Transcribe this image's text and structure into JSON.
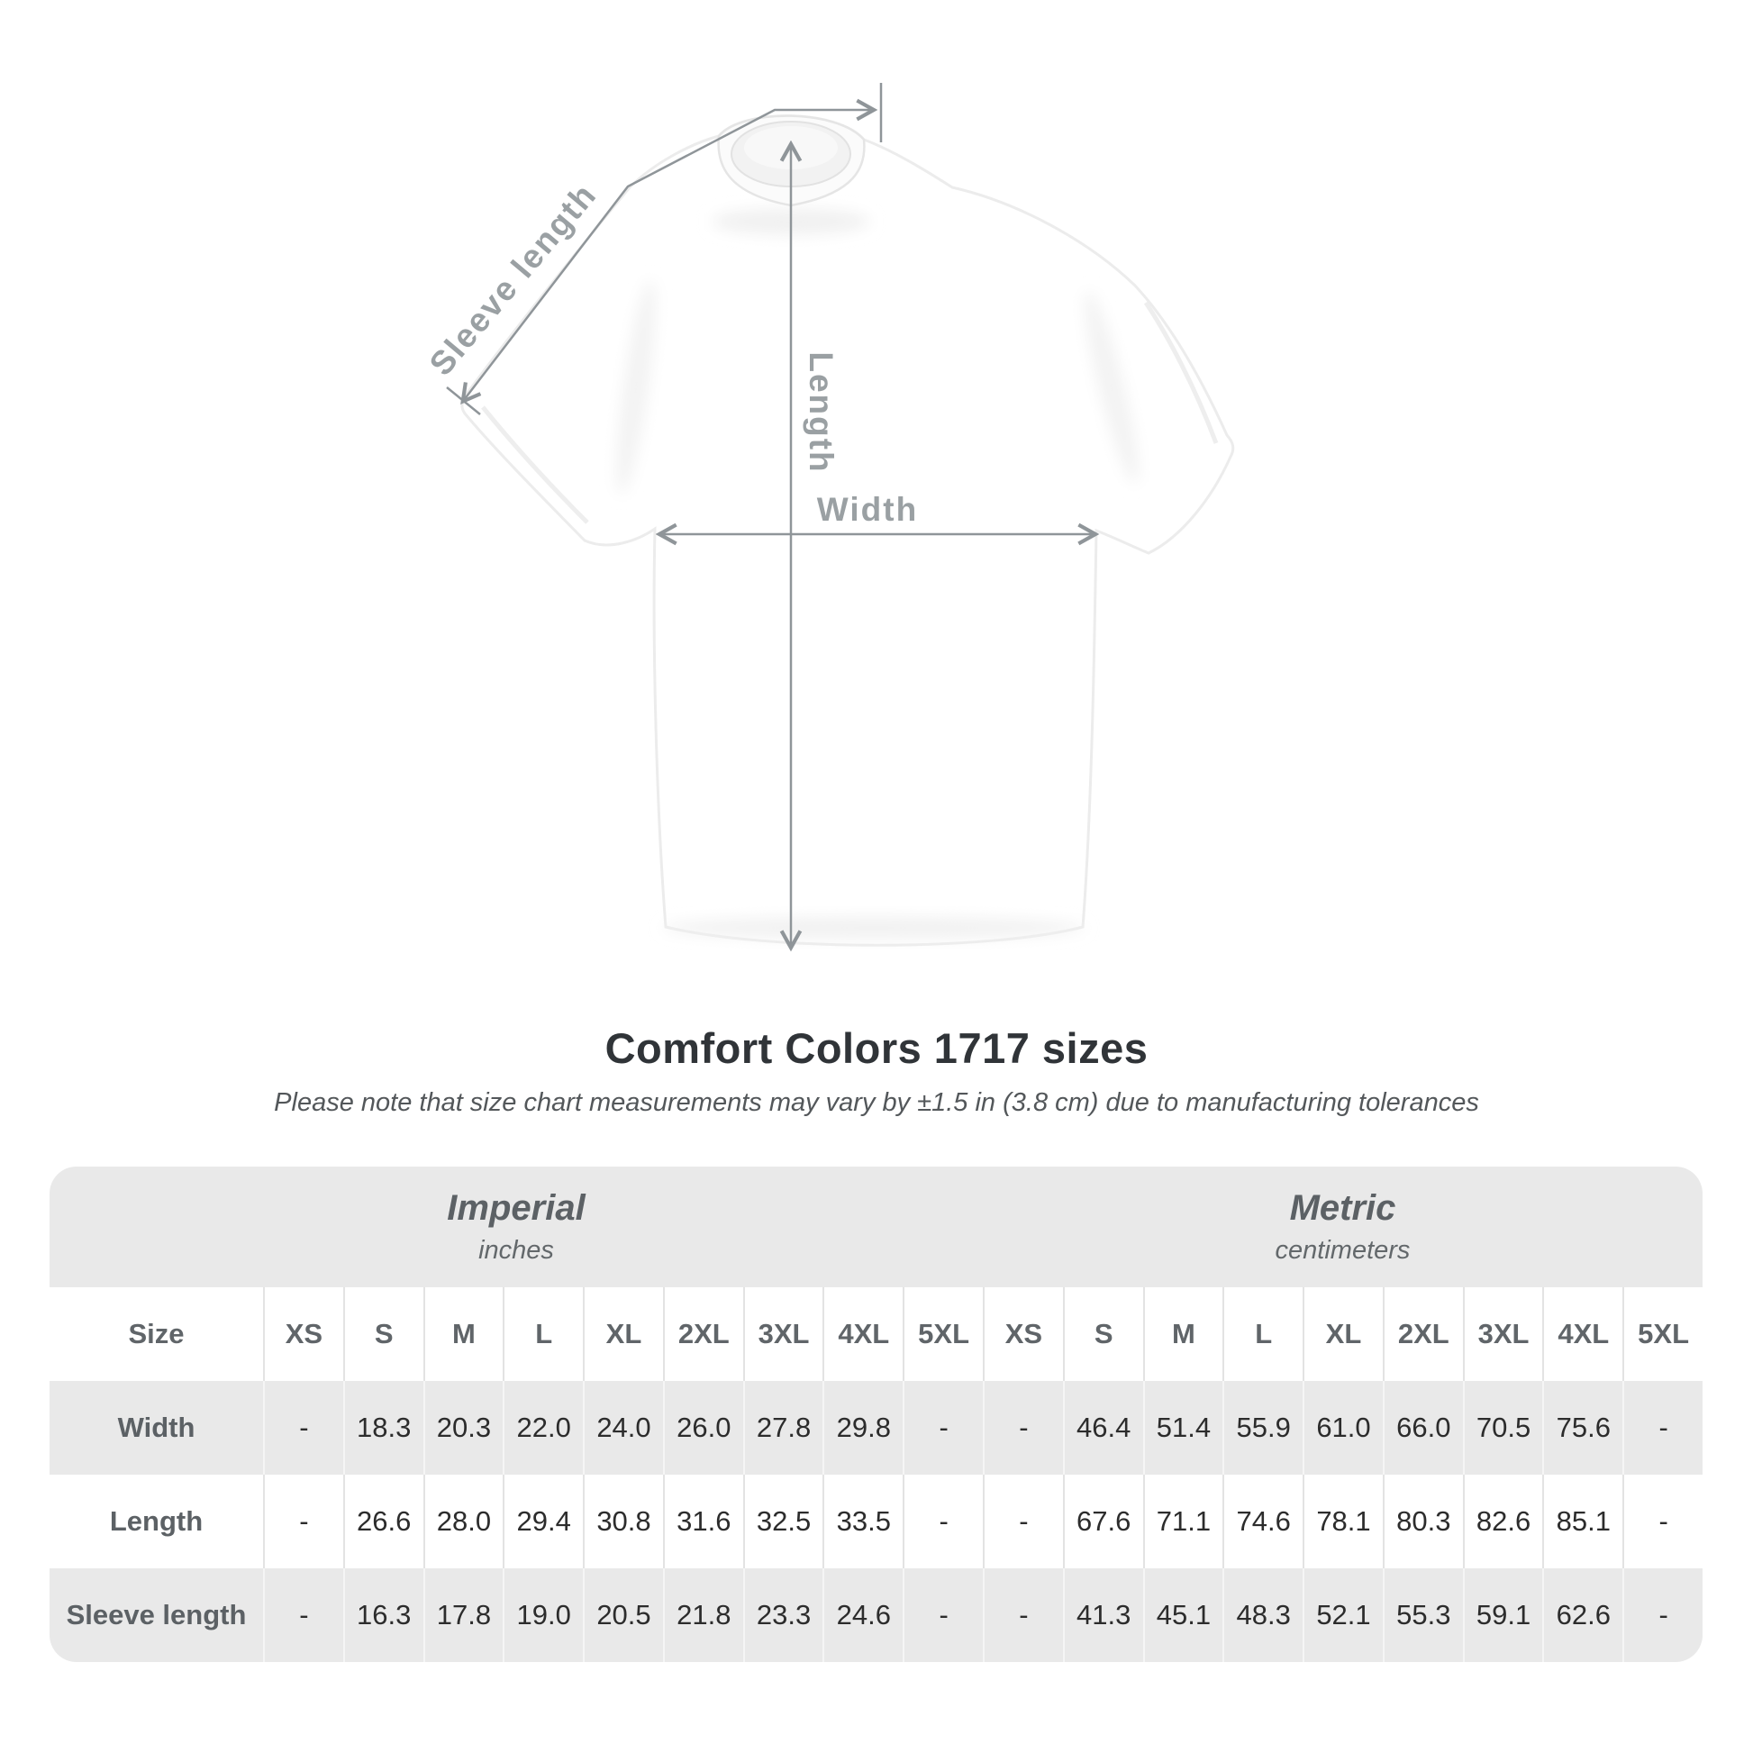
{
  "diagram": {
    "sleeve_label": "Sleeve length",
    "length_label": "Length",
    "width_label": "Width"
  },
  "heading": {
    "title": "Comfort Colors 1717 sizes",
    "note": "Please note that size chart measurements may vary by ±1.5 in (3.8 cm) due to manufacturing tolerances"
  },
  "table": {
    "size_col_header": "Size",
    "unit_groups": [
      {
        "name": "Imperial",
        "unit": "inches"
      },
      {
        "name": "Metric",
        "unit": "centimeters"
      }
    ],
    "sizes": [
      "XS",
      "S",
      "M",
      "L",
      "XL",
      "2XL",
      "3XL",
      "4XL",
      "5XL"
    ],
    "rows": [
      {
        "label": "Width",
        "imperial": [
          "-",
          "18.3",
          "20.3",
          "22.0",
          "24.0",
          "26.0",
          "27.8",
          "29.8",
          "-"
        ],
        "metric": [
          "-",
          "46.4",
          "51.4",
          "55.9",
          "61.0",
          "66.0",
          "70.5",
          "75.6",
          "-"
        ]
      },
      {
        "label": "Length",
        "imperial": [
          "-",
          "26.6",
          "28.0",
          "29.4",
          "30.8",
          "31.6",
          "32.5",
          "33.5",
          "-"
        ],
        "metric": [
          "-",
          "67.6",
          "71.1",
          "74.6",
          "78.1",
          "80.3",
          "82.6",
          "85.1",
          "-"
        ]
      },
      {
        "label": "Sleeve length",
        "imperial": [
          "-",
          "16.3",
          "17.8",
          "19.0",
          "20.5",
          "21.8",
          "23.3",
          "24.6",
          "-"
        ],
        "metric": [
          "-",
          "41.3",
          "45.1",
          "48.3",
          "52.1",
          "55.3",
          "59.1",
          "62.6",
          "-"
        ]
      }
    ]
  },
  "colors": {
    "annotation_line": "#8f9599",
    "annotation_text": "#9aa0a3",
    "table_band": "#e9e9e9",
    "title_text": "#303438",
    "value_text": "#2c2c2c"
  },
  "chart_data": {
    "type": "table",
    "title": "Comfort Colors 1717 sizes",
    "note": "Please note that size chart measurements may vary by ±1.5 in (3.8 cm) due to manufacturing tolerances",
    "unit_groups": [
      "Imperial (inches)",
      "Metric (centimeters)"
    ],
    "columns": [
      "Size",
      "XS",
      "S",
      "M",
      "L",
      "XL",
      "2XL",
      "3XL",
      "4XL",
      "5XL"
    ],
    "rows": [
      {
        "measure": "Width",
        "imperial_in": [
          null,
          18.3,
          20.3,
          22.0,
          24.0,
          26.0,
          27.8,
          29.8,
          null
        ],
        "metric_cm": [
          null,
          46.4,
          51.4,
          55.9,
          61.0,
          66.0,
          70.5,
          75.6,
          null
        ]
      },
      {
        "measure": "Length",
        "imperial_in": [
          null,
          26.6,
          28.0,
          29.4,
          30.8,
          31.6,
          32.5,
          33.5,
          null
        ],
        "metric_cm": [
          null,
          67.6,
          71.1,
          74.6,
          78.1,
          80.3,
          82.6,
          85.1,
          null
        ]
      },
      {
        "measure": "Sleeve length",
        "imperial_in": [
          null,
          16.3,
          17.8,
          19.0,
          20.5,
          21.8,
          23.3,
          24.6,
          null
        ],
        "metric_cm": [
          null,
          41.3,
          45.1,
          48.3,
          52.1,
          55.3,
          59.1,
          62.6,
          null
        ]
      }
    ]
  }
}
